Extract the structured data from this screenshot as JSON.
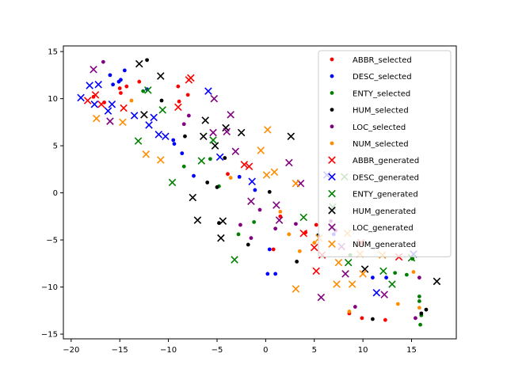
{
  "chart_data": {
    "type": "scatter",
    "title": "",
    "xlabel": "",
    "ylabel": "",
    "xlim": [
      -20.8,
      19.6
    ],
    "ylim": [
      -15.5,
      15.6
    ],
    "xticks": [
      -20,
      -15,
      -10,
      -5,
      0,
      5,
      10,
      15
    ],
    "yticks": [
      -15,
      -10,
      -5,
      0,
      5,
      10,
      15
    ],
    "grid": false,
    "legend_position": "top-right",
    "series": [
      {
        "name": "ABBR_selected",
        "color": "#ff0000",
        "marker": "dot",
        "points": [
          [
            -17.7,
            10.2
          ],
          [
            -16.6,
            9.6
          ],
          [
            -15.0,
            11.1
          ],
          [
            -14.9,
            10.6
          ],
          [
            -14.3,
            11.3
          ],
          [
            -13.0,
            11.8
          ],
          [
            -9.0,
            11.3
          ],
          [
            -8.9,
            9.7
          ],
          [
            -8.0,
            10.4
          ],
          [
            -3.9,
            2.0
          ],
          [
            0.8,
            -6.0
          ],
          [
            1.5,
            -2.5
          ],
          [
            4.1,
            -4.2
          ],
          [
            5.2,
            -3.4
          ],
          [
            8.6,
            -12.8
          ],
          [
            9.9,
            -13.3
          ],
          [
            12.3,
            -13.5
          ]
        ]
      },
      {
        "name": "DESC_selected",
        "color": "#0000ff",
        "marker": "dot",
        "points": [
          [
            -16.0,
            12.5
          ],
          [
            -15.7,
            11.5
          ],
          [
            -15.1,
            11.8
          ],
          [
            -14.9,
            12.0
          ],
          [
            -14.5,
            13.0
          ],
          [
            -12.2,
            11.0
          ],
          [
            -9.5,
            5.6
          ],
          [
            -9.4,
            5.2
          ],
          [
            -8.6,
            4.2
          ],
          [
            -7.4,
            1.8
          ],
          [
            -2.7,
            1.7
          ],
          [
            -1.1,
            0.3
          ],
          [
            0.4,
            -6.0
          ],
          [
            0.2,
            -8.6
          ],
          [
            1.0,
            -8.6
          ],
          [
            7.0,
            -4.4
          ],
          [
            11.0,
            -9.0
          ],
          [
            12.4,
            -9.0
          ]
        ]
      },
      {
        "name": "ENTY_selected",
        "color": "#008000",
        "marker": "dot",
        "points": [
          [
            -12.6,
            10.8
          ],
          [
            -8.4,
            2.8
          ],
          [
            -5.7,
            3.6
          ],
          [
            -4.8,
            0.7
          ],
          [
            -2.8,
            -4.4
          ],
          [
            -1.2,
            -3.1
          ],
          [
            8.7,
            -6.6
          ],
          [
            13.3,
            -8.5
          ],
          [
            14.5,
            -8.7
          ],
          [
            15.1,
            -7.0
          ],
          [
            15.8,
            -11.0
          ],
          [
            15.8,
            -11.5
          ],
          [
            16.0,
            -13.0
          ],
          [
            15.9,
            -14.0
          ]
        ]
      },
      {
        "name": "HUM_selected",
        "color": "#000000",
        "marker": "dot",
        "points": [
          [
            -12.2,
            14.1
          ],
          [
            -10.7,
            9.8
          ],
          [
            -8.3,
            6.0
          ],
          [
            -6.0,
            1.1
          ],
          [
            -5.0,
            0.6
          ],
          [
            -4.2,
            3.7
          ],
          [
            -4.8,
            -3.2
          ],
          [
            -1.8,
            -5.5
          ],
          [
            0.4,
            0.1
          ],
          [
            3.2,
            -7.3
          ],
          [
            5.4,
            -4.5
          ],
          [
            11.0,
            -13.4
          ],
          [
            16.5,
            -12.4
          ],
          [
            16.0,
            -12.8
          ]
        ]
      },
      {
        "name": "LOC_selected",
        "color": "#800080",
        "marker": "dot",
        "points": [
          [
            -16.7,
            13.9
          ],
          [
            -8.4,
            7.3
          ],
          [
            -7.9,
            8.2
          ],
          [
            -2.6,
            -3.4
          ],
          [
            -1.5,
            -4.8
          ],
          [
            -0.6,
            -1.8
          ],
          [
            1.0,
            -3.8
          ],
          [
            3.1,
            -3.3
          ],
          [
            6.7,
            -3.0
          ],
          [
            7.2,
            -4.0
          ],
          [
            9.2,
            -12.1
          ],
          [
            15.4,
            -13.3
          ],
          [
            15.8,
            -9.0
          ]
        ]
      },
      {
        "name": "NUM_selected",
        "color": "#ff8c00",
        "marker": "dot",
        "points": [
          [
            -13.8,
            9.8
          ],
          [
            -3.6,
            1.6
          ],
          [
            1.5,
            -2.0
          ],
          [
            2.4,
            -4.4
          ],
          [
            3.5,
            -6.2
          ],
          [
            5.0,
            -5.3
          ],
          [
            8.6,
            -12.6
          ],
          [
            13.6,
            -11.8
          ],
          [
            15.2,
            -8.4
          ],
          [
            15.8,
            -12.2
          ]
        ]
      },
      {
        "name": "ABBR_generated",
        "color": "#ff0000",
        "marker": "x",
        "points": [
          [
            -18.3,
            9.8
          ],
          [
            -17.5,
            10.4
          ],
          [
            -16.9,
            9.4
          ],
          [
            -14.6,
            9.0
          ],
          [
            -9.0,
            9.1
          ],
          [
            -7.7,
            12.2
          ],
          [
            -7.9,
            12.0
          ],
          [
            -2.2,
            3.0
          ],
          [
            -1.7,
            2.8
          ],
          [
            3.9,
            -4.3
          ],
          [
            5.0,
            -5.8
          ],
          [
            5.2,
            -8.3
          ],
          [
            5.8,
            -6.6
          ],
          [
            9.8,
            -5.3
          ],
          [
            13.7,
            -6.8
          ]
        ]
      },
      {
        "name": "DESC_generated",
        "color": "#0000ff",
        "marker": "x",
        "points": [
          [
            -19.0,
            10.1
          ],
          [
            -18.1,
            11.4
          ],
          [
            -17.6,
            9.4
          ],
          [
            -17.2,
            11.5
          ],
          [
            -16.2,
            8.7
          ],
          [
            -15.8,
            9.4
          ],
          [
            -13.5,
            8.2
          ],
          [
            -12.0,
            7.2
          ],
          [
            -11.5,
            8.0
          ],
          [
            -11.0,
            6.2
          ],
          [
            -10.3,
            6.0
          ],
          [
            -5.9,
            10.8
          ],
          [
            -4.7,
            3.8
          ],
          [
            -1.4,
            1.2
          ],
          [
            6.3,
            1.9
          ],
          [
            11.4,
            -10.6
          ],
          [
            15.2,
            -6.5
          ]
        ]
      },
      {
        "name": "ENTY_generated",
        "color": "#008000",
        "marker": "x",
        "points": [
          [
            -13.1,
            5.5
          ],
          [
            -12.1,
            10.9
          ],
          [
            -10.6,
            8.8
          ],
          [
            -9.6,
            1.1
          ],
          [
            -6.6,
            3.4
          ],
          [
            -5.4,
            5.6
          ],
          [
            -3.2,
            -7.1
          ],
          [
            3.9,
            -2.6
          ],
          [
            6.9,
            -1.5
          ],
          [
            8.1,
            1.7
          ],
          [
            8.5,
            -7.4
          ],
          [
            12.1,
            -8.3
          ],
          [
            13.0,
            -9.7
          ],
          [
            15.0,
            -6.9
          ]
        ]
      },
      {
        "name": "HUM_generated",
        "color": "#000000",
        "marker": "x",
        "points": [
          [
            -13.0,
            13.7
          ],
          [
            -12.5,
            8.3
          ],
          [
            -10.8,
            12.4
          ],
          [
            -7.5,
            -0.5
          ],
          [
            -7.0,
            -2.9
          ],
          [
            -6.4,
            6.0
          ],
          [
            -6.2,
            7.7
          ],
          [
            -5.2,
            5.0
          ],
          [
            -4.4,
            -3.0
          ],
          [
            -4.6,
            -4.8
          ],
          [
            -4.1,
            6.9
          ],
          [
            -2.5,
            6.4
          ],
          [
            2.6,
            6.0
          ],
          [
            10.2,
            -8.1
          ],
          [
            17.6,
            -9.4
          ]
        ]
      },
      {
        "name": "LOC_generated",
        "color": "#800080",
        "marker": "x",
        "points": [
          [
            -17.7,
            13.1
          ],
          [
            -16.0,
            7.6
          ],
          [
            -5.3,
            10.0
          ],
          [
            -5.4,
            6.4
          ],
          [
            -4.0,
            6.5
          ],
          [
            -3.6,
            8.3
          ],
          [
            -3.1,
            4.4
          ],
          [
            -1.5,
            -0.9
          ],
          [
            1.1,
            -1.3
          ],
          [
            1.4,
            -2.9
          ],
          [
            2.4,
            3.2
          ],
          [
            3.6,
            1.0
          ],
          [
            5.7,
            -11.1
          ],
          [
            7.8,
            -5.7
          ],
          [
            8.2,
            -8.6
          ],
          [
            12.2,
            -10.8
          ]
        ]
      },
      {
        "name": "NUM_generated",
        "color": "#ff8c00",
        "marker": "x",
        "points": [
          [
            -17.4,
            7.9
          ],
          [
            -14.7,
            7.5
          ],
          [
            -12.3,
            4.1
          ],
          [
            -10.8,
            3.5
          ],
          [
            -0.5,
            4.5
          ],
          [
            0.1,
            1.9
          ],
          [
            0.2,
            6.7
          ],
          [
            0.9,
            2.2
          ],
          [
            3.1,
            -10.2
          ],
          [
            3.1,
            1.0
          ],
          [
            5.5,
            -4.8
          ],
          [
            7.3,
            -9.7
          ],
          [
            7.5,
            -7.4
          ],
          [
            8.4,
            -4.3
          ],
          [
            8.9,
            -9.7
          ],
          [
            9.7,
            -6.5
          ],
          [
            10.0,
            -8.6
          ],
          [
            12.0,
            -6.6
          ]
        ]
      }
    ]
  }
}
